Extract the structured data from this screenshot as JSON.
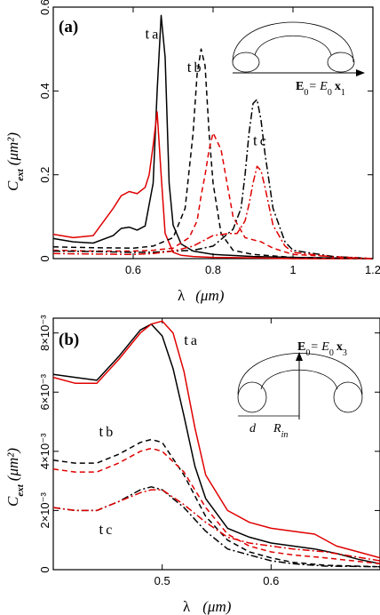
{
  "chart_data": [
    {
      "type": "line",
      "panel_label": "(a)",
      "xlabel": "λ",
      "xunit": "(μm)",
      "ylabel": "C",
      "ylabel_sub": "ext",
      "yunit": "(μm²)",
      "xlim": [
        0.4,
        1.2
      ],
      "ylim": [
        0,
        0.6
      ],
      "xticks": [
        0.6,
        0.8,
        1.0,
        1.2
      ],
      "xtick_labels": [
        "0.6",
        "0.8",
        "1",
        "1.2"
      ],
      "yticks": [
        0,
        0.2,
        0.4,
        0.6
      ],
      "ytick_labels": [
        "0",
        "0.2",
        "0.4",
        "0.6"
      ],
      "curve_labels": [
        {
          "text": "t",
          "sub": "a",
          "x": 0.63,
          "y": 0.525
        },
        {
          "text": "t",
          "sub": "b",
          "x": 0.735,
          "y": 0.445
        },
        {
          "text": "t",
          "sub": "c",
          "x": 0.9,
          "y": 0.27
        }
      ],
      "inset": {
        "field": "E",
        "field_sub": "0",
        "eq": "= E",
        "eq_sub": "0",
        "vec": "x",
        "vec_sub": "1"
      },
      "series": [
        {
          "color": "#000000",
          "dash": "solid",
          "x": [
            0.4,
            0.45,
            0.5,
            0.55,
            0.57,
            0.59,
            0.61,
            0.63,
            0.65,
            0.66,
            0.67,
            0.68,
            0.69,
            0.7,
            0.72,
            0.75,
            0.8,
            0.9,
            1.0,
            1.2
          ],
          "values": [
            0.048,
            0.04,
            0.037,
            0.055,
            0.072,
            0.075,
            0.068,
            0.078,
            0.18,
            0.4,
            0.58,
            0.48,
            0.18,
            0.08,
            0.035,
            0.018,
            0.01,
            0.005,
            0.003,
            0.0
          ]
        },
        {
          "color": "#e00000",
          "dash": "solid",
          "x": [
            0.4,
            0.45,
            0.5,
            0.55,
            0.57,
            0.59,
            0.61,
            0.63,
            0.64,
            0.65,
            0.66,
            0.67,
            0.68,
            0.7,
            0.72,
            0.75,
            0.8,
            0.9,
            1.0,
            1.2
          ],
          "values": [
            0.058,
            0.05,
            0.055,
            0.12,
            0.15,
            0.16,
            0.155,
            0.17,
            0.2,
            0.27,
            0.35,
            0.2,
            0.06,
            0.015,
            0.008,
            0.005,
            0.003,
            0.002,
            0.0,
            0.0
          ]
        },
        {
          "color": "#000000",
          "dash": "6,4",
          "x": [
            0.4,
            0.5,
            0.6,
            0.65,
            0.7,
            0.73,
            0.75,
            0.76,
            0.77,
            0.78,
            0.79,
            0.8,
            0.82,
            0.85,
            0.9,
            1.0,
            1.2
          ],
          "values": [
            0.028,
            0.026,
            0.025,
            0.03,
            0.05,
            0.12,
            0.3,
            0.44,
            0.5,
            0.46,
            0.3,
            0.18,
            0.06,
            0.02,
            0.01,
            0.003,
            0.0
          ]
        },
        {
          "color": "#e00000",
          "dash": "6,4",
          "x": [
            0.4,
            0.5,
            0.6,
            0.65,
            0.7,
            0.74,
            0.76,
            0.77,
            0.78,
            0.79,
            0.8,
            0.82,
            0.85,
            0.88,
            0.9,
            0.92,
            0.95,
            1.0,
            1.2
          ],
          "values": [
            0.02,
            0.018,
            0.018,
            0.02,
            0.025,
            0.05,
            0.09,
            0.15,
            0.2,
            0.26,
            0.3,
            0.26,
            0.1,
            0.05,
            0.045,
            0.04,
            0.025,
            0.01,
            0.0
          ]
        },
        {
          "color": "#000000",
          "dash": "8,3,2,3",
          "x": [
            0.4,
            0.5,
            0.6,
            0.65,
            0.7,
            0.75,
            0.8,
            0.85,
            0.87,
            0.88,
            0.89,
            0.9,
            0.91,
            0.92,
            0.93,
            0.95,
            0.98,
            1.0,
            1.1,
            1.2
          ],
          "values": [
            0.018,
            0.017,
            0.015,
            0.015,
            0.018,
            0.02,
            0.03,
            0.07,
            0.12,
            0.2,
            0.3,
            0.37,
            0.38,
            0.33,
            0.25,
            0.12,
            0.04,
            0.02,
            0.005,
            0.0
          ]
        },
        {
          "color": "#e00000",
          "dash": "8,3,2,3",
          "x": [
            0.4,
            0.5,
            0.6,
            0.65,
            0.7,
            0.75,
            0.8,
            0.84,
            0.86,
            0.88,
            0.89,
            0.9,
            0.91,
            0.92,
            0.93,
            0.95,
            0.98,
            1.0,
            1.1,
            1.2
          ],
          "values": [
            0.012,
            0.011,
            0.01,
            0.012,
            0.018,
            0.03,
            0.055,
            0.06,
            0.06,
            0.09,
            0.13,
            0.18,
            0.22,
            0.21,
            0.17,
            0.08,
            0.03,
            0.015,
            0.004,
            0.0
          ]
        }
      ]
    },
    {
      "type": "line",
      "panel_label": "(b)",
      "xlabel": "λ",
      "xunit": "(μm)",
      "ylabel": "C",
      "ylabel_sub": "ext",
      "yunit": "(μm²)",
      "xlim": [
        0.4,
        0.7
      ],
      "ylim": [
        0,
        0.0085
      ],
      "xticks": [
        0.5,
        0.6
      ],
      "xtick_labels": [
        "0.5",
        "0.6"
      ],
      "yticks": [
        0,
        0.002,
        0.004,
        0.006,
        0.008
      ],
      "ytick_labels": [
        "0",
        "2×10⁻³",
        "4×10⁻³",
        "6×10⁻³",
        "8×10⁻³"
      ],
      "curve_labels": [
        {
          "text": "t",
          "sub": "a",
          "x": 0.52,
          "y": 0.0076
        },
        {
          "text": "t",
          "sub": "b",
          "x": 0.442,
          "y": 0.0045
        },
        {
          "text": "t",
          "sub": "c",
          "x": 0.442,
          "y": 0.0012
        }
      ],
      "inset": {
        "field": "E",
        "field_sub": "0",
        "eq": "= E",
        "eq_sub": "0",
        "vec": "x",
        "vec_sub": "3",
        "d": "d",
        "rin": "R",
        "rin_sub": "in"
      },
      "series": [
        {
          "color": "#000000",
          "dash": "solid",
          "x": [
            0.4,
            0.42,
            0.44,
            0.46,
            0.48,
            0.49,
            0.5,
            0.51,
            0.52,
            0.53,
            0.54,
            0.56,
            0.58,
            0.6,
            0.62,
            0.64,
            0.66,
            0.68,
            0.7
          ],
          "values": [
            0.0066,
            0.0065,
            0.0064,
            0.0072,
            0.0081,
            0.0083,
            0.0079,
            0.0068,
            0.0052,
            0.0035,
            0.0024,
            0.0014,
            0.0011,
            0.0009,
            0.0008,
            0.0007,
            0.00055,
            0.00035,
            0.0002
          ]
        },
        {
          "color": "#e00000",
          "dash": "solid",
          "x": [
            0.4,
            0.42,
            0.44,
            0.46,
            0.48,
            0.49,
            0.5,
            0.51,
            0.52,
            0.53,
            0.54,
            0.56,
            0.58,
            0.6,
            0.62,
            0.64,
            0.66,
            0.68,
            0.7
          ],
          "values": [
            0.0065,
            0.0063,
            0.0063,
            0.0071,
            0.008,
            0.0083,
            0.0084,
            0.008,
            0.0067,
            0.0048,
            0.0032,
            0.002,
            0.0016,
            0.0014,
            0.0013,
            0.0012,
            0.0008,
            0.0006,
            0.0004
          ]
        },
        {
          "color": "#000000",
          "dash": "6,4",
          "x": [
            0.4,
            0.42,
            0.44,
            0.46,
            0.48,
            0.49,
            0.5,
            0.52,
            0.54,
            0.56,
            0.58,
            0.6,
            0.62,
            0.65,
            0.7
          ],
          "values": [
            0.0037,
            0.0036,
            0.0036,
            0.0039,
            0.0043,
            0.0044,
            0.0043,
            0.0032,
            0.0018,
            0.001,
            0.0006,
            0.0004,
            0.00025,
            0.00015,
            0.0001
          ]
        },
        {
          "color": "#e00000",
          "dash": "6,4",
          "x": [
            0.4,
            0.42,
            0.44,
            0.46,
            0.48,
            0.49,
            0.5,
            0.52,
            0.54,
            0.56,
            0.58,
            0.6,
            0.62,
            0.65,
            0.7
          ],
          "values": [
            0.0034,
            0.0033,
            0.0033,
            0.0036,
            0.004,
            0.0041,
            0.004,
            0.0033,
            0.0021,
            0.0012,
            0.0008,
            0.0006,
            0.0005,
            0.0004,
            0.0002
          ]
        },
        {
          "color": "#000000",
          "dash": "8,3,2,3",
          "x": [
            0.4,
            0.42,
            0.44,
            0.46,
            0.48,
            0.49,
            0.5,
            0.52,
            0.54,
            0.56,
            0.58,
            0.6,
            0.62,
            0.65,
            0.7
          ],
          "values": [
            0.0021,
            0.002,
            0.002,
            0.0023,
            0.0027,
            0.0028,
            0.0027,
            0.0021,
            0.0013,
            0.0007,
            0.0005,
            0.0003,
            0.0002,
            0.00012,
            0.0001
          ]
        },
        {
          "color": "#e00000",
          "dash": "8,3,2,3",
          "x": [
            0.4,
            0.42,
            0.44,
            0.46,
            0.48,
            0.49,
            0.5,
            0.52,
            0.54,
            0.56,
            0.58,
            0.6,
            0.62,
            0.65,
            0.7
          ],
          "values": [
            0.0021,
            0.002,
            0.002,
            0.0023,
            0.0026,
            0.0027,
            0.0027,
            0.0022,
            0.0016,
            0.0011,
            0.0009,
            0.0008,
            0.0007,
            0.0006,
            0.0003
          ]
        }
      ]
    }
  ]
}
